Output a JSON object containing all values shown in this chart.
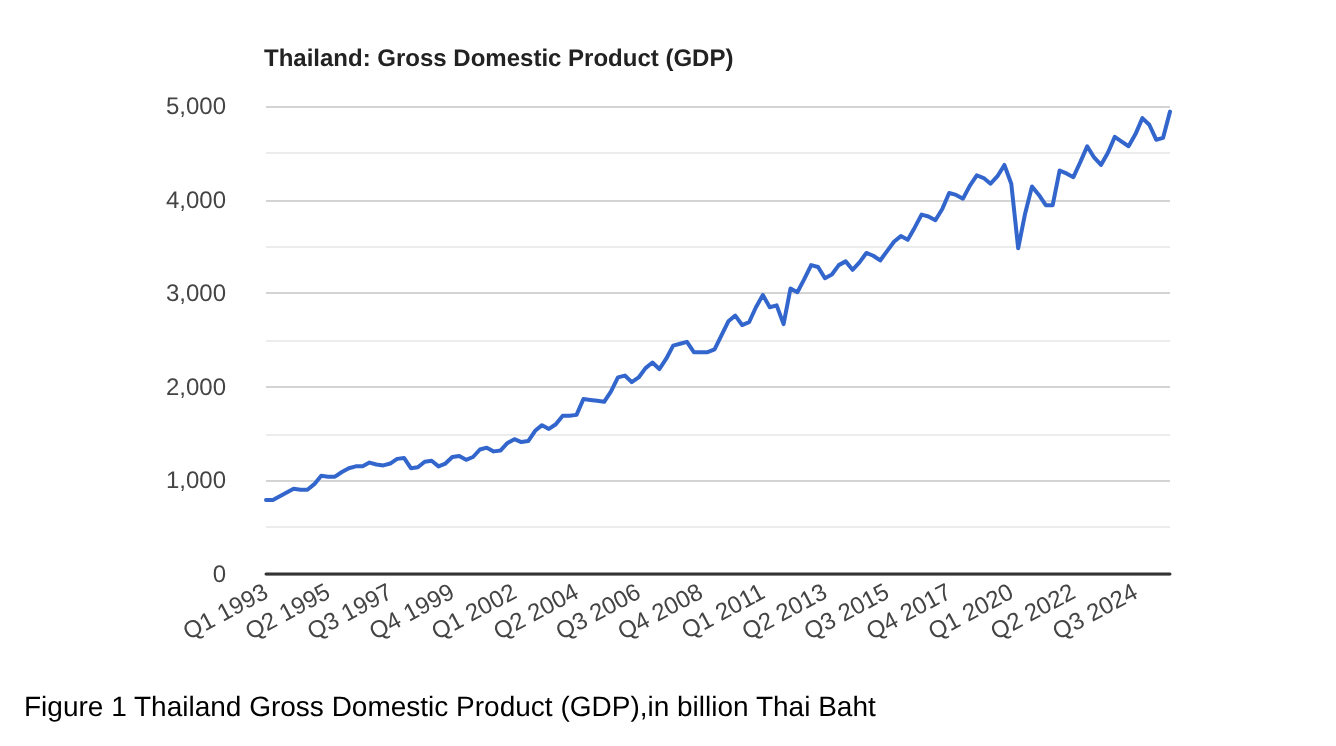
{
  "chart_data": {
    "type": "line",
    "title": "Thailand: Gross Domestic Product (GDP)",
    "annotations": [
      "Figure 1 Thailand Gross Domestic Product (GDP),in billion Thai Baht"
    ],
    "categories": [
      "Q1 1993",
      null,
      null,
      null,
      null,
      null,
      null,
      null,
      null,
      "Q2 1995",
      null,
      null,
      null,
      null,
      null,
      null,
      null,
      null,
      "Q3 1997",
      null,
      null,
      null,
      null,
      null,
      null,
      null,
      null,
      "Q4 1999",
      null,
      null,
      null,
      null,
      null,
      null,
      null,
      null,
      "Q1 2002",
      null,
      null,
      null,
      null,
      null,
      null,
      null,
      null,
      "Q2 2004",
      null,
      null,
      null,
      null,
      null,
      null,
      null,
      null,
      "Q3 2006",
      null,
      null,
      null,
      null,
      null,
      null,
      null,
      null,
      "Q4 2008",
      null,
      null,
      null,
      null,
      null,
      null,
      null,
      null,
      "Q1 2011",
      null,
      null,
      null,
      null,
      null,
      null,
      null,
      null,
      "Q2 2013",
      null,
      null,
      null,
      null,
      null,
      null,
      null,
      null,
      "Q3 2015",
      null,
      null,
      null,
      null,
      null,
      null,
      null,
      null,
      "Q4 2017",
      null,
      null,
      null,
      null,
      null,
      null,
      null,
      null,
      "Q1 2020",
      null,
      null,
      null,
      null,
      null,
      null,
      null,
      null,
      "Q2 2022",
      null,
      null,
      null,
      null,
      null,
      null,
      null,
      null,
      "Q3 2024",
      null,
      null,
      null,
      null,
      null
    ],
    "series": [
      {
        "color": "#3366cc",
        "values": [
          790,
          790,
          830,
          870,
          910,
          900,
          900,
          960,
          1050,
          1040,
          1040,
          1090,
          1130,
          1150,
          1150,
          1190,
          1170,
          1160,
          1180,
          1230,
          1240,
          1130,
          1140,
          1200,
          1210,
          1150,
          1180,
          1250,
          1260,
          1220,
          1250,
          1330,
          1350,
          1310,
          1320,
          1400,
          1440,
          1410,
          1420,
          1530,
          1590,
          1550,
          1600,
          1690,
          1690,
          1700,
          1870,
          1860,
          1850,
          1840,
          1950,
          2100,
          2120,
          2050,
          2100,
          2200,
          2260,
          2190,
          2300,
          2440,
          2460,
          2480,
          2370,
          2370,
          2370,
          2400,
          2550,
          2700,
          2760,
          2660,
          2690,
          2850,
          2980,
          2850,
          2870,
          2670,
          3050,
          3010,
          3150,
          3300,
          3280,
          3160,
          3200,
          3300,
          3340,
          3250,
          3330,
          3430,
          3400,
          3350,
          3450,
          3550,
          3610,
          3570,
          3700,
          3840,
          3820,
          3780,
          3900,
          4070,
          4050,
          4010,
          4150,
          4260,
          4230,
          4170,
          4250,
          4370,
          4170,
          3480,
          3850,
          4140,
          4050,
          3940,
          3940,
          4310,
          4280,
          4240,
          4400,
          4570,
          4450,
          4370,
          4500,
          4670,
          4620,
          4570,
          4700,
          4870,
          4800,
          4640,
          4660,
          4940
        ]
      }
    ],
    "ylim": [
      0,
      5000
    ],
    "yticks": [
      {
        "value": 0,
        "label": "0"
      },
      {
        "value": 500,
        "label": null
      },
      {
        "value": 1000,
        "label": "1,000"
      },
      {
        "value": 1500,
        "label": null
      },
      {
        "value": 2000,
        "label": "2,000"
      },
      {
        "value": 2500,
        "label": null
      },
      {
        "value": 3000,
        "label": "3,000"
      },
      {
        "value": 3500,
        "label": null
      },
      {
        "value": 4000,
        "label": "4,000"
      },
      {
        "value": 4500,
        "label": null
      },
      {
        "value": 5000,
        "label": "5,000"
      }
    ],
    "grid": "y",
    "marker": "none",
    "line_style": "solid"
  }
}
